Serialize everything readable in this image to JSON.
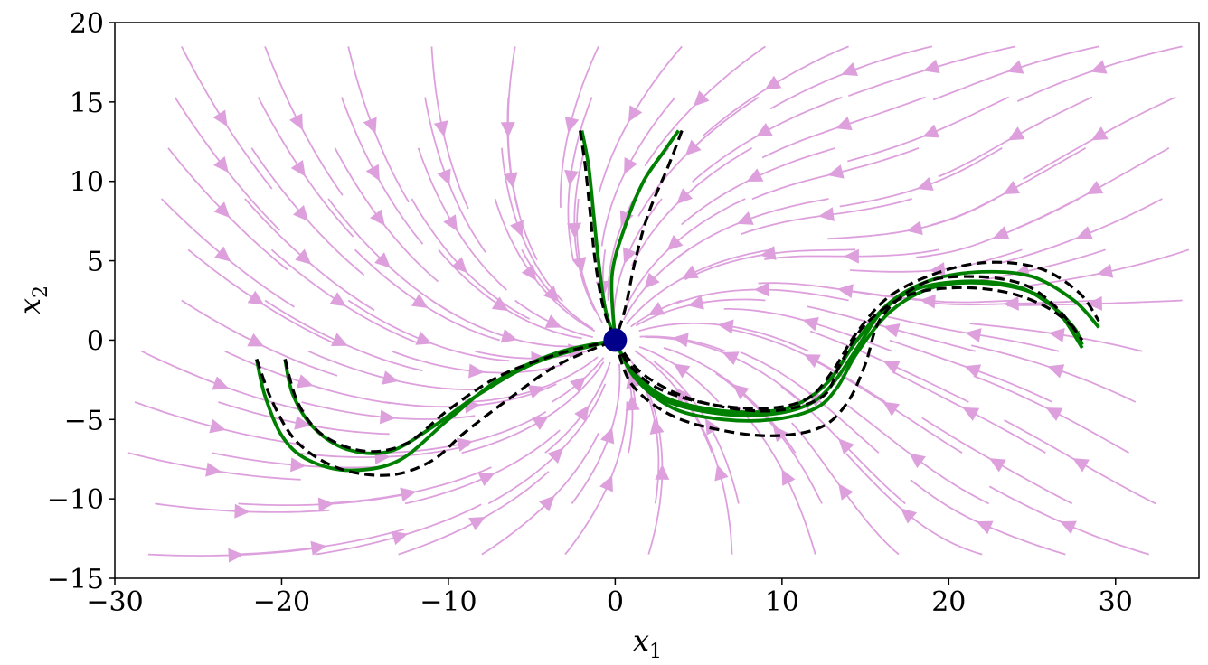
{
  "chart_data": {
    "type": "line",
    "subtype": "phase-portrait",
    "xlabel": {
      "main": "x",
      "sub": "1"
    },
    "ylabel": {
      "main": "x",
      "sub": "2"
    },
    "xlim": [
      -30,
      35
    ],
    "ylim": [
      -15,
      20
    ],
    "xticks": [
      -30,
      -20,
      -10,
      0,
      10,
      20,
      30
    ],
    "yticks": [
      -15,
      -10,
      -5,
      0,
      5,
      10,
      15,
      20
    ],
    "xtick_labels": [
      "−30",
      "−20",
      "−10",
      "0",
      "10",
      "20",
      "30"
    ],
    "ytick_labels": [
      "−15",
      "−10",
      "−5",
      "0",
      "5",
      "10",
      "15",
      "20"
    ],
    "grid": false,
    "colors": {
      "streamlines": "#dda0dd",
      "trajectories": "#008000",
      "reference": "#000000",
      "equilibrium": "#00008b"
    },
    "equilibrium": {
      "x": 0,
      "y": 0
    },
    "trajectories": [
      {
        "style": "solid",
        "points": [
          [
            -2.0,
            13.2
          ],
          [
            -1.6,
            11.0
          ],
          [
            -1.3,
            8.0
          ],
          [
            -1.0,
            5.0
          ],
          [
            -0.6,
            2.0
          ],
          [
            0,
            0
          ]
        ]
      },
      {
        "style": "solid",
        "points": [
          [
            3.8,
            13.2
          ],
          [
            3.0,
            12.0
          ],
          [
            1.7,
            10.0
          ],
          [
            0.6,
            7.2
          ],
          [
            -0.2,
            4.0
          ],
          [
            0,
            0
          ]
        ]
      },
      {
        "style": "solid",
        "points": [
          [
            -21.5,
            -1.2
          ],
          [
            -21.0,
            -3.5
          ],
          [
            -20.0,
            -6.0
          ],
          [
            -18.5,
            -7.5
          ],
          [
            -16.0,
            -8.2
          ],
          [
            -13.0,
            -7.6
          ],
          [
            -10.0,
            -5.0
          ],
          [
            -7.0,
            -2.5
          ],
          [
            -3.5,
            -0.8
          ],
          [
            0,
            0
          ]
        ]
      },
      {
        "style": "solid",
        "points": [
          [
            -19.8,
            -1.2
          ],
          [
            -19.3,
            -3.5
          ],
          [
            -18.0,
            -5.6
          ],
          [
            -16.0,
            -6.9
          ],
          [
            -13.5,
            -7.0
          ],
          [
            -11.0,
            -5.5
          ],
          [
            -8.0,
            -3.3
          ],
          [
            -4.5,
            -1.3
          ],
          [
            0,
            0
          ]
        ]
      },
      {
        "style": "solid",
        "points": [
          [
            0,
            0
          ],
          [
            1.0,
            -2.0
          ],
          [
            3.0,
            -3.8
          ],
          [
            6.0,
            -4.6
          ],
          [
            9.0,
            -4.7
          ],
          [
            11.5,
            -4.1
          ],
          [
            13.0,
            -2.8
          ],
          [
            14.5,
            -0.5
          ],
          [
            16.0,
            1.8
          ],
          [
            18.0,
            3.2
          ],
          [
            21.0,
            3.7
          ],
          [
            24.0,
            3.4
          ],
          [
            26.0,
            2.3
          ],
          [
            27.5,
            0.8
          ],
          [
            28.0,
            -0.3
          ]
        ]
      },
      {
        "style": "solid",
        "points": [
          [
            0,
            0
          ],
          [
            1.2,
            -2.4
          ],
          [
            3.5,
            -4.3
          ],
          [
            6.5,
            -5.0
          ],
          [
            9.5,
            -5.0
          ],
          [
            12.0,
            -4.3
          ],
          [
            13.3,
            -3.0
          ],
          [
            14.5,
            -0.8
          ],
          [
            16.5,
            1.8
          ],
          [
            19.0,
            3.3
          ],
          [
            22.0,
            3.6
          ],
          [
            25.0,
            3.0
          ],
          [
            26.7,
            1.6
          ],
          [
            28.0,
            -0.5
          ]
        ]
      },
      {
        "style": "solid",
        "points": [
          [
            0,
            0
          ],
          [
            0.9,
            -1.8
          ],
          [
            3.0,
            -3.6
          ],
          [
            6.0,
            -4.4
          ],
          [
            9.0,
            -4.5
          ],
          [
            11.0,
            -4.0
          ],
          [
            12.8,
            -2.6
          ],
          [
            14.5,
            0.0
          ],
          [
            16.5,
            2.4
          ],
          [
            19.0,
            3.8
          ],
          [
            22.0,
            4.3
          ],
          [
            25.0,
            4.0
          ],
          [
            27.5,
            2.5
          ],
          [
            29.0,
            0.8
          ]
        ]
      },
      {
        "style": "dashed",
        "points": [
          [
            -2.1,
            13.2
          ],
          [
            -1.8,
            11.0
          ],
          [
            -1.5,
            8.0
          ],
          [
            -1.2,
            5.0
          ],
          [
            -0.7,
            2.0
          ],
          [
            0,
            0
          ]
        ]
      },
      {
        "style": "dashed",
        "points": [
          [
            4.0,
            13.2
          ],
          [
            3.2,
            11.0
          ],
          [
            2.0,
            8.0
          ],
          [
            1.2,
            5.0
          ],
          [
            0.6,
            2.0
          ],
          [
            0,
            0
          ]
        ]
      },
      {
        "style": "dashed",
        "points": [
          [
            -21.5,
            -1.2
          ],
          [
            -20.5,
            -4.0
          ],
          [
            -19.0,
            -6.5
          ],
          [
            -16.5,
            -8.1
          ],
          [
            -13.5,
            -8.5
          ],
          [
            -11.0,
            -7.6
          ],
          [
            -9.0,
            -5.8
          ],
          [
            -6.5,
            -3.8
          ],
          [
            -3.5,
            -1.6
          ],
          [
            0,
            0
          ]
        ]
      },
      {
        "style": "dashed",
        "points": [
          [
            -19.8,
            -1.2
          ],
          [
            -19.0,
            -4.0
          ],
          [
            -17.5,
            -6.0
          ],
          [
            -15.0,
            -7.0
          ],
          [
            -12.5,
            -6.5
          ],
          [
            -10.0,
            -4.4
          ],
          [
            -7.0,
            -2.3
          ],
          [
            -3.5,
            -0.9
          ],
          [
            0,
            0
          ]
        ]
      },
      {
        "style": "dashed",
        "points": [
          [
            0,
            0
          ],
          [
            1.0,
            -2.8
          ],
          [
            3.5,
            -4.8
          ],
          [
            7.0,
            -5.8
          ],
          [
            10.0,
            -6.0
          ],
          [
            12.5,
            -5.4
          ],
          [
            14.0,
            -3.8
          ],
          [
            15.0,
            -1.5
          ],
          [
            16.0,
            1.5
          ],
          [
            18.5,
            3.6
          ],
          [
            21.5,
            4.0
          ],
          [
            24.5,
            3.5
          ],
          [
            26.5,
            2.0
          ],
          [
            28.0,
            0.0
          ]
        ]
      },
      {
        "style": "dashed",
        "points": [
          [
            0,
            0
          ],
          [
            1.5,
            -2.0
          ],
          [
            4.0,
            -3.5
          ],
          [
            7.0,
            -4.3
          ],
          [
            10.0,
            -4.4
          ],
          [
            12.5,
            -3.5
          ],
          [
            13.5,
            -1.5
          ],
          [
            15.0,
            1.0
          ],
          [
            17.5,
            2.8
          ],
          [
            20.5,
            3.3
          ],
          [
            23.5,
            3.0
          ],
          [
            26.0,
            2.0
          ],
          [
            27.8,
            0.5
          ]
        ]
      },
      {
        "style": "dashed",
        "points": [
          [
            0,
            0
          ],
          [
            0.8,
            -1.5
          ],
          [
            2.5,
            -3.0
          ],
          [
            5.5,
            -4.0
          ],
          [
            9.0,
            -4.3
          ],
          [
            11.5,
            -3.7
          ],
          [
            13.0,
            -2.0
          ],
          [
            14.5,
            0.5
          ],
          [
            16.5,
            2.8
          ],
          [
            19.5,
            4.3
          ],
          [
            22.5,
            4.9
          ],
          [
            25.5,
            4.5
          ],
          [
            27.8,
            3.0
          ],
          [
            29.0,
            1.2
          ]
        ]
      }
    ]
  }
}
